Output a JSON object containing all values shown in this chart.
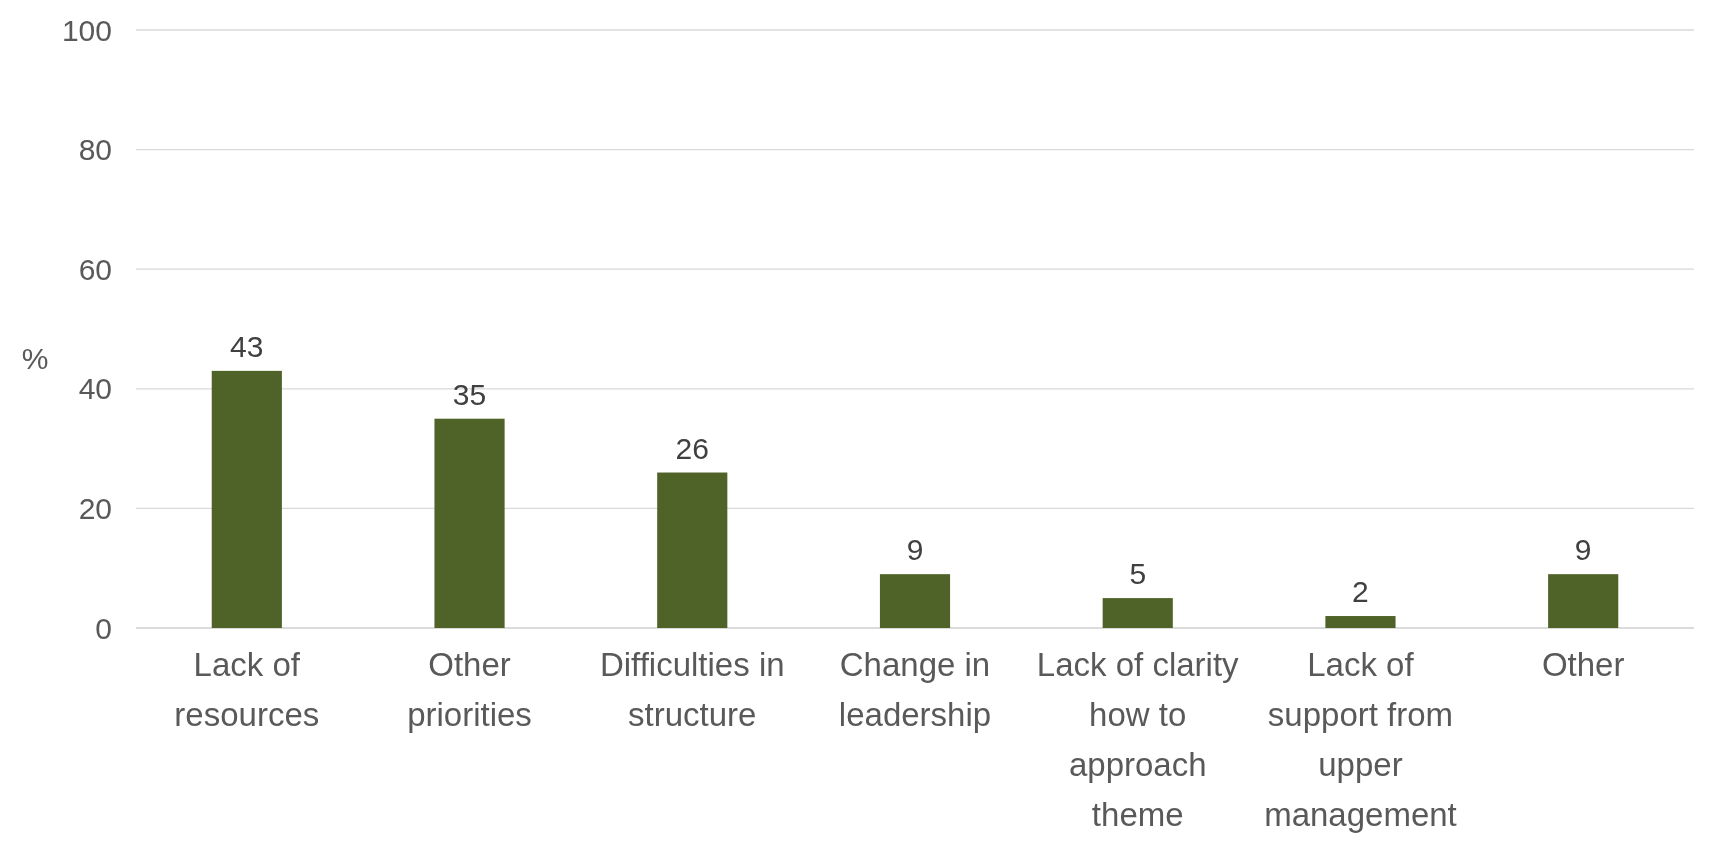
{
  "chart_data": {
    "type": "bar",
    "ylabel": "%",
    "categories": [
      "Lack of resources",
      "Other priorities",
      "Difficulties in structure",
      "Change in leadership",
      "Lack of clarity how to approach theme",
      "Lack of support from upper management",
      "Other"
    ],
    "values": [
      43,
      35,
      26,
      9,
      5,
      2,
      9
    ],
    "color": "#4f6228",
    "ylim": [
      0,
      100
    ],
    "yticks": [
      0,
      20,
      40,
      60,
      80,
      100
    ],
    "grid": "y",
    "data_labels": true
  }
}
